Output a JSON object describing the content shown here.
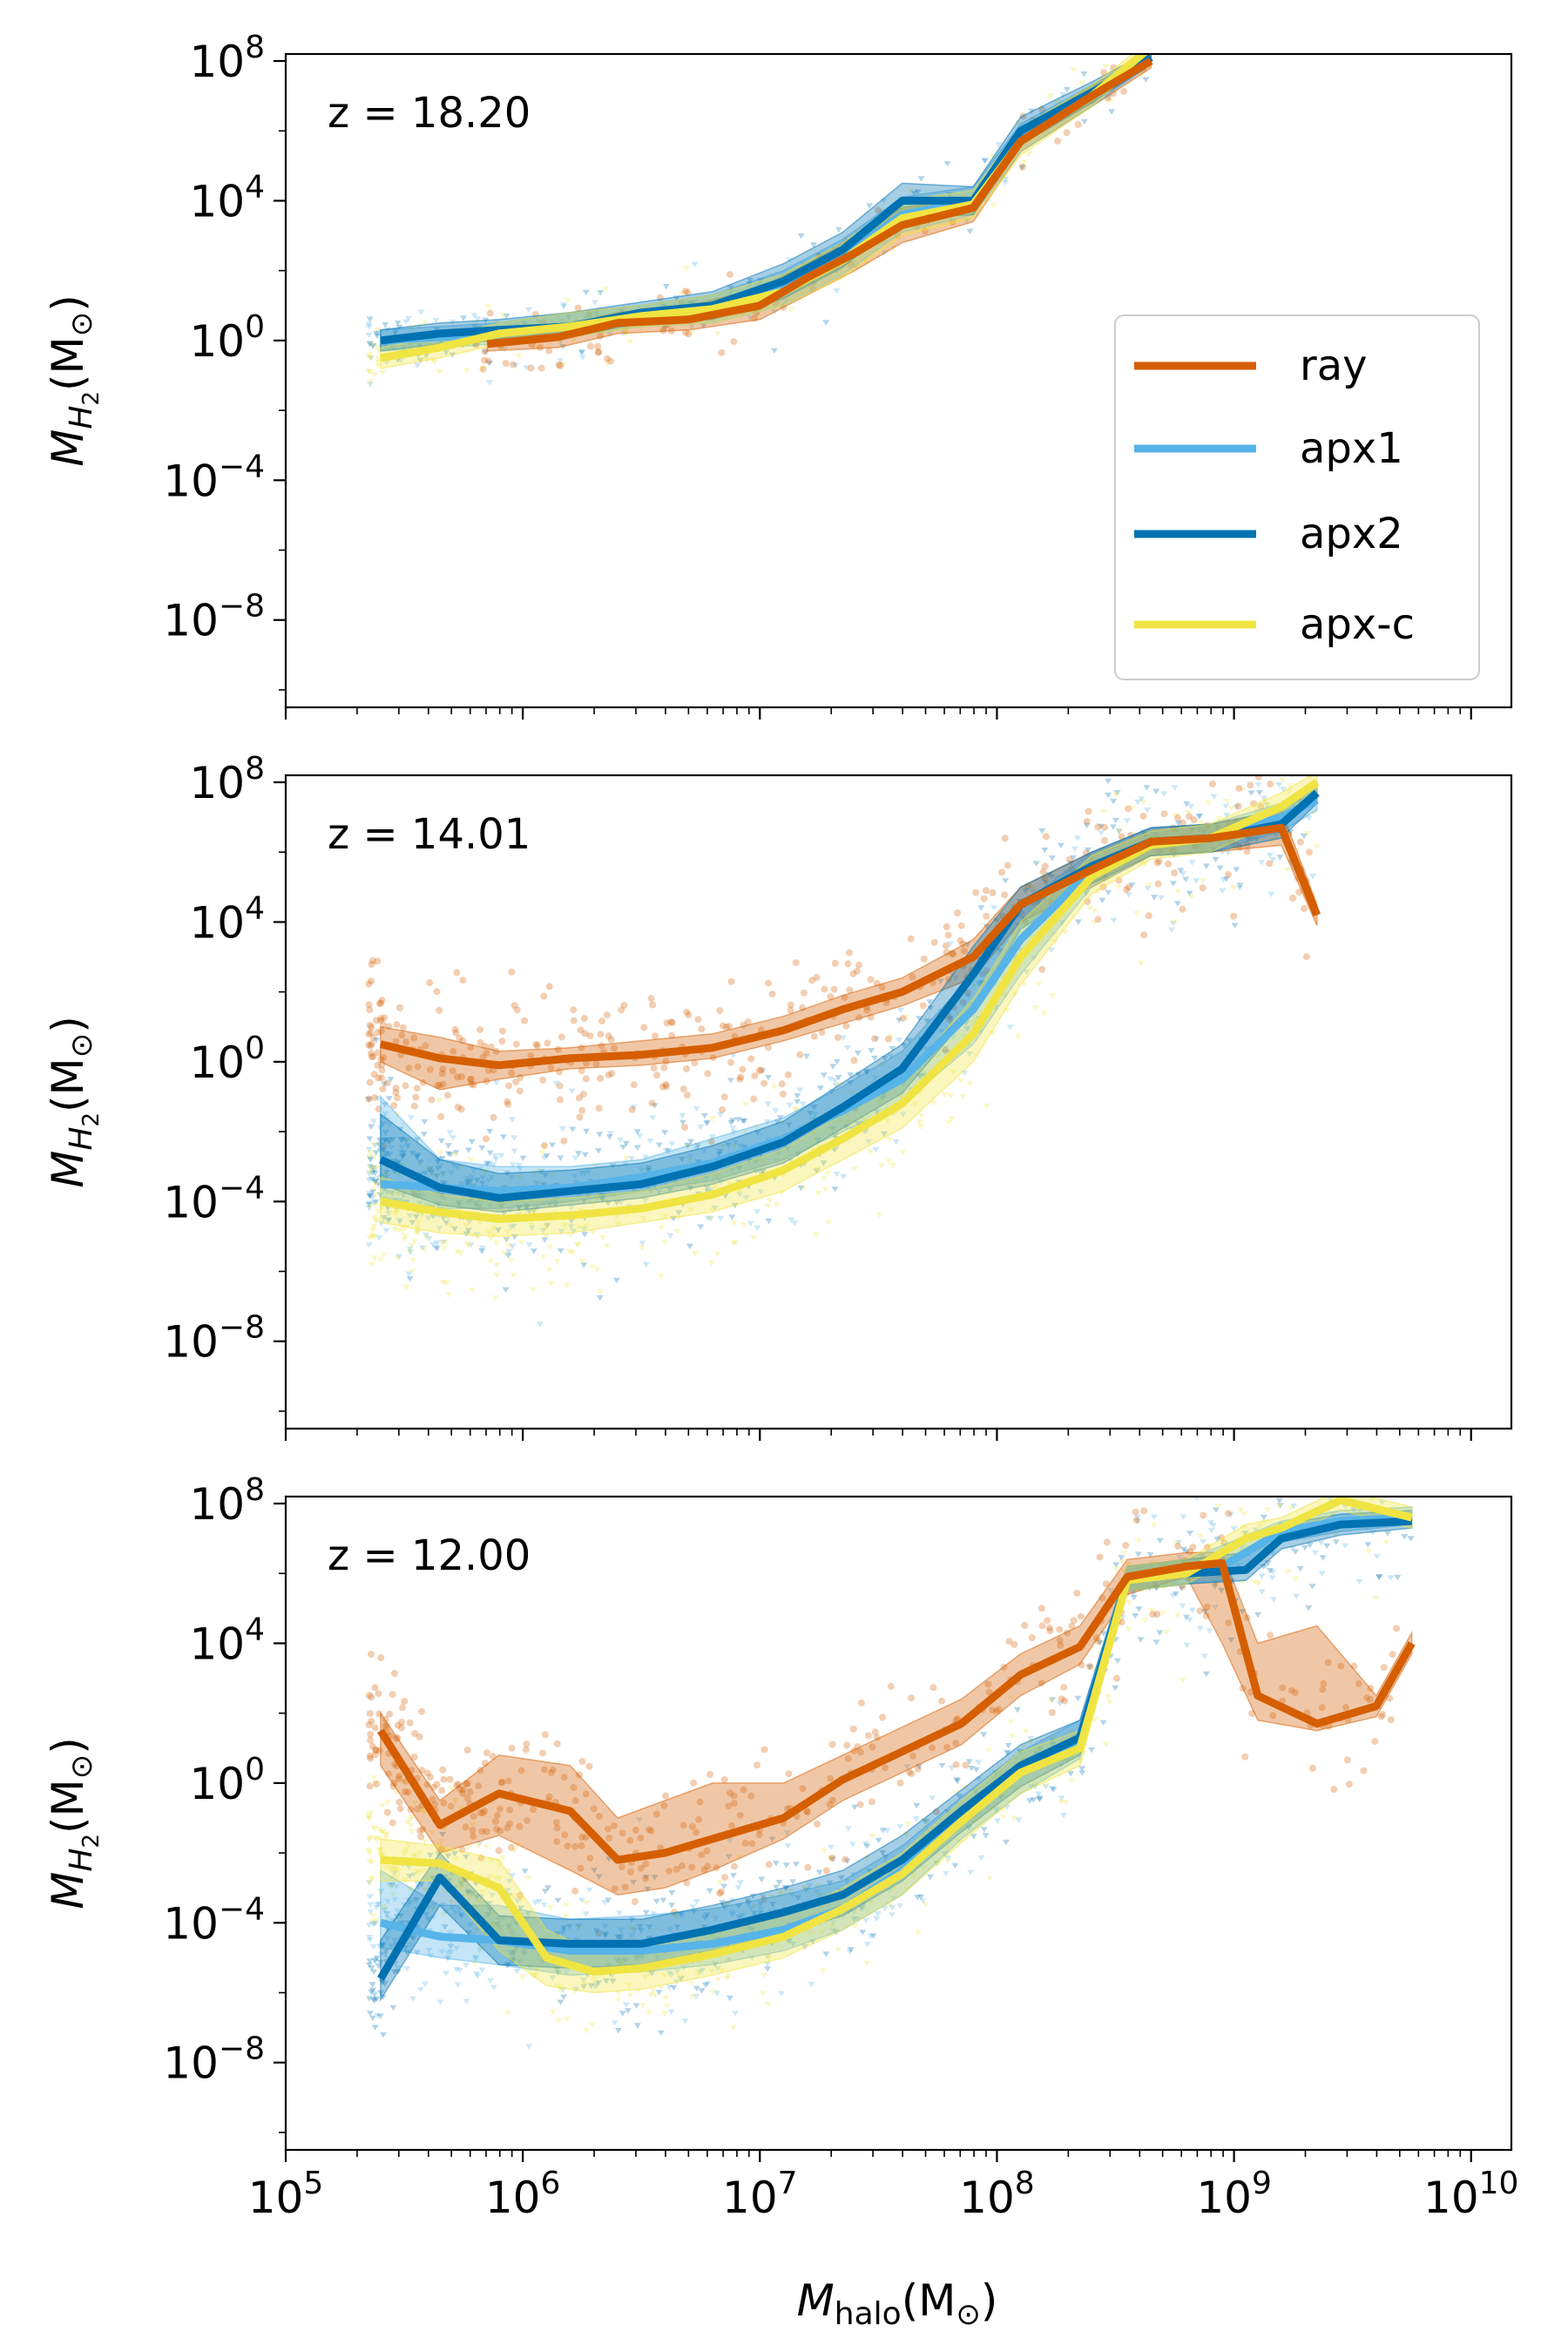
{
  "colors": {
    "ray": "#d55e00",
    "apx1": "#56b4e9",
    "apx2": "#0072b2",
    "apx-c": "#f0e442"
  },
  "legend_entries": [
    {
      "name": "ray",
      "label": "ray"
    },
    {
      "name": "apx1",
      "label": "apx1"
    },
    {
      "name": "apx2",
      "label": "apx2"
    },
    {
      "name": "apx-c",
      "label": "apx-c"
    }
  ],
  "axis_labels": {
    "ylabel_main": "M",
    "ylabel_sub": "H",
    "ylabel_subsub": "2",
    "ylabel_tail": "(M",
    "ylabel_sun": "⊙",
    "ylabel_close": ")",
    "xlabel_main": "M",
    "xlabel_sub": "halo",
    "xlabel_tail": "(M",
    "xlabel_sun": "⊙",
    "xlabel_close": ")"
  },
  "chart_data": [
    {
      "type": "line",
      "title": "z = 18.20",
      "xscale": "log",
      "yscale": "log",
      "xlim": [
        5,
        10.17
      ],
      "ylim": [
        -10.5,
        8.2
      ],
      "xticks": [
        {
          "exp": 5,
          "base": "10",
          "sup": "5"
        },
        {
          "exp": 6,
          "base": "10",
          "sup": "6"
        },
        {
          "exp": 7,
          "base": "10",
          "sup": "7"
        },
        {
          "exp": 8,
          "base": "10",
          "sup": "8"
        },
        {
          "exp": 9,
          "base": "10",
          "sup": "9"
        },
        {
          "exp": 10,
          "base": "10",
          "sup": "10"
        }
      ],
      "yticks": [
        {
          "exp": 8,
          "base": "10",
          "sup": "8"
        },
        {
          "exp": 4,
          "base": "10",
          "sup": "4"
        },
        {
          "exp": 0,
          "base": "10",
          "sup": "0"
        },
        {
          "exp": -4,
          "base": "10",
          "sup": "−4"
        },
        {
          "exp": -8,
          "base": "10",
          "sup": "−8"
        }
      ],
      "show_xticklabels": false,
      "legend": "right",
      "series": [
        {
          "name": "ray",
          "x": [
            5.85,
            6.15,
            6.4,
            6.7,
            7.0,
            7.2,
            7.4,
            7.6,
            7.9,
            8.1,
            8.4,
            8.65
          ],
          "y": [
            -0.1,
            0.1,
            0.5,
            0.6,
            1.0,
            1.8,
            2.5,
            3.3,
            3.8,
            5.7,
            7.0,
            8.0
          ],
          "lo": [
            -0.3,
            -0.2,
            0.2,
            0.3,
            0.6,
            1.3,
            2.0,
            2.8,
            3.4,
            5.4,
            6.7,
            7.8
          ],
          "hi": [
            0.2,
            0.4,
            0.8,
            1.0,
            1.5,
            2.2,
            3.0,
            3.8,
            4.1,
            6.0,
            7.3,
            8.2
          ]
        },
        {
          "name": "apx1",
          "x": [
            5.4,
            5.65,
            5.9,
            6.2,
            6.5,
            6.8,
            7.1,
            7.35,
            7.6,
            7.9,
            8.1,
            8.4,
            8.65
          ],
          "y": [
            0.0,
            0.1,
            0.2,
            0.4,
            0.7,
            0.9,
            1.5,
            2.4,
            3.6,
            4.0,
            5.8,
            7.0,
            8.1
          ],
          "lo": [
            -0.3,
            -0.2,
            -0.1,
            0.1,
            0.4,
            0.5,
            1.0,
            1.9,
            3.1,
            3.6,
            5.4,
            6.7,
            7.9
          ],
          "hi": [
            0.3,
            0.4,
            0.5,
            0.8,
            1.0,
            1.3,
            2.0,
            2.9,
            4.1,
            4.4,
            6.2,
            7.3,
            8.3
          ]
        },
        {
          "name": "apx2",
          "x": [
            5.4,
            5.65,
            5.9,
            6.2,
            6.5,
            6.8,
            7.1,
            7.35,
            7.6,
            7.9,
            8.1,
            8.4,
            8.65
          ],
          "y": [
            0.0,
            0.2,
            0.3,
            0.4,
            0.8,
            1.0,
            1.7,
            2.6,
            4.0,
            4.0,
            6.0,
            7.1,
            8.1
          ],
          "lo": [
            -0.3,
            -0.1,
            0.0,
            0.1,
            0.5,
            0.6,
            1.2,
            2.1,
            3.5,
            3.6,
            5.6,
            6.8,
            7.9
          ],
          "hi": [
            0.3,
            0.5,
            0.6,
            0.8,
            1.1,
            1.4,
            2.2,
            3.1,
            4.5,
            4.4,
            6.4,
            7.4,
            8.3
          ]
        },
        {
          "name": "apx-c",
          "x": [
            5.4,
            5.65,
            5.9,
            6.2,
            6.5,
            6.8,
            7.1,
            7.35,
            7.6,
            7.9,
            8.1,
            8.4,
            8.65
          ],
          "y": [
            -0.5,
            -0.2,
            0.2,
            0.4,
            0.7,
            0.9,
            1.4,
            2.3,
            3.5,
            3.9,
            5.7,
            7.0,
            8.4
          ],
          "lo": [
            -0.8,
            -0.5,
            -0.1,
            0.1,
            0.4,
            0.5,
            1.0,
            1.8,
            3.0,
            3.5,
            5.3,
            6.7,
            8.2
          ],
          "hi": [
            -0.2,
            0.1,
            0.5,
            0.8,
            1.0,
            1.3,
            1.9,
            2.8,
            4.0,
            4.3,
            6.1,
            7.3,
            8.6
          ]
        }
      ]
    },
    {
      "type": "line",
      "title": "z = 14.01",
      "xscale": "log",
      "yscale": "log",
      "xlim": [
        5,
        10.17
      ],
      "ylim": [
        -10.5,
        8.2
      ],
      "xticks": [
        {
          "exp": 5,
          "base": "10",
          "sup": "5"
        },
        {
          "exp": 6,
          "base": "10",
          "sup": "6"
        },
        {
          "exp": 7,
          "base": "10",
          "sup": "7"
        },
        {
          "exp": 8,
          "base": "10",
          "sup": "8"
        },
        {
          "exp": 9,
          "base": "10",
          "sup": "9"
        },
        {
          "exp": 10,
          "base": "10",
          "sup": "10"
        }
      ],
      "yticks": [
        {
          "exp": 8,
          "base": "10",
          "sup": "8"
        },
        {
          "exp": 4,
          "base": "10",
          "sup": "4"
        },
        {
          "exp": 0,
          "base": "10",
          "sup": "0"
        },
        {
          "exp": -4,
          "base": "10",
          "sup": "−4"
        },
        {
          "exp": -8,
          "base": "10",
          "sup": "−8"
        }
      ],
      "show_xticklabels": false,
      "series": [
        {
          "name": "ray",
          "x": [
            5.4,
            5.65,
            5.9,
            6.2,
            6.5,
            6.8,
            7.1,
            7.35,
            7.6,
            7.9,
            8.1,
            8.4,
            8.65,
            8.9,
            9.2,
            9.35
          ],
          "y": [
            0.5,
            0.1,
            -0.1,
            0.1,
            0.2,
            0.4,
            0.9,
            1.5,
            2.0,
            3.0,
            4.5,
            5.5,
            6.3,
            6.4,
            6.7,
            4.2
          ],
          "lo": [
            0.0,
            -0.8,
            -0.5,
            -0.2,
            -0.1,
            0.1,
            0.6,
            1.1,
            1.6,
            2.4,
            4.0,
            5.0,
            5.9,
            6.0,
            6.2,
            3.9
          ],
          "hi": [
            1.0,
            0.7,
            0.3,
            0.4,
            0.6,
            0.8,
            1.3,
            1.9,
            2.4,
            3.5,
            5.0,
            6.0,
            6.7,
            6.8,
            7.2,
            4.5
          ]
        },
        {
          "name": "apx1",
          "x": [
            5.4,
            5.65,
            5.9,
            6.2,
            6.5,
            6.8,
            7.1,
            7.35,
            7.6,
            7.9,
            8.1,
            8.4,
            8.65,
            8.9,
            9.2,
            9.35
          ],
          "y": [
            -3.5,
            -3.6,
            -3.7,
            -3.6,
            -3.3,
            -2.9,
            -2.2,
            -1.4,
            -0.5,
            1.5,
            3.5,
            5.5,
            6.3,
            6.4,
            7.0,
            7.5
          ],
          "lo": [
            -4.0,
            -4.2,
            -4.2,
            -4.0,
            -3.7,
            -3.4,
            -2.8,
            -2.0,
            -1.2,
            0.5,
            2.5,
            5.0,
            5.9,
            6.0,
            6.6,
            7.2
          ],
          "hi": [
            -1.0,
            -2.8,
            -3.0,
            -3.0,
            -2.8,
            -2.2,
            -1.6,
            -0.7,
            0.3,
            2.5,
            4.5,
            6.0,
            6.7,
            6.8,
            7.4,
            7.8
          ]
        },
        {
          "name": "apx2",
          "x": [
            5.4,
            5.65,
            5.9,
            6.2,
            6.5,
            6.8,
            7.1,
            7.35,
            7.6,
            7.9,
            8.1,
            8.4,
            8.65,
            8.9,
            9.2,
            9.35
          ],
          "y": [
            -2.8,
            -3.6,
            -3.9,
            -3.7,
            -3.5,
            -3.0,
            -2.3,
            -1.3,
            -0.2,
            2.5,
            4.5,
            5.6,
            6.3,
            6.4,
            6.8,
            7.7
          ],
          "lo": [
            -3.5,
            -4.1,
            -4.3,
            -4.1,
            -3.9,
            -3.5,
            -2.9,
            -1.9,
            -0.9,
            1.5,
            3.8,
            5.1,
            5.9,
            6.0,
            6.4,
            7.4
          ],
          "hi": [
            -1.5,
            -2.8,
            -3.2,
            -3.1,
            -2.9,
            -2.4,
            -1.7,
            -0.6,
            0.5,
            3.3,
            5.0,
            6.0,
            6.7,
            6.8,
            7.2,
            8.0
          ]
        },
        {
          "name": "apx-c",
          "x": [
            5.4,
            5.65,
            5.9,
            6.2,
            6.5,
            6.8,
            7.1,
            7.35,
            7.6,
            7.9,
            8.1,
            8.4,
            8.65,
            8.9,
            9.2,
            9.35
          ],
          "y": [
            -4.0,
            -4.3,
            -4.5,
            -4.4,
            -4.2,
            -3.8,
            -3.1,
            -2.2,
            -1.2,
            0.8,
            3.0,
            5.3,
            6.2,
            6.4,
            7.3,
            8.0
          ],
          "lo": [
            -4.6,
            -4.9,
            -5.0,
            -4.9,
            -4.6,
            -4.3,
            -3.7,
            -2.8,
            -1.9,
            0.0,
            2.2,
            4.8,
            5.8,
            6.0,
            6.9,
            7.7
          ],
          "hi": [
            -3.3,
            -3.8,
            -4.0,
            -3.9,
            -3.7,
            -3.2,
            -2.5,
            -1.5,
            -0.5,
            1.8,
            4.0,
            5.9,
            6.6,
            6.8,
            7.7,
            8.3
          ]
        }
      ]
    },
    {
      "type": "line",
      "title": "z = 12.00",
      "xscale": "log",
      "yscale": "log",
      "xlim": [
        5,
        10.17
      ],
      "ylim": [
        -10.5,
        8.2
      ],
      "xticks": [
        {
          "exp": 5,
          "base": "10",
          "sup": "5"
        },
        {
          "exp": 6,
          "base": "10",
          "sup": "6"
        },
        {
          "exp": 7,
          "base": "10",
          "sup": "7"
        },
        {
          "exp": 8,
          "base": "10",
          "sup": "8"
        },
        {
          "exp": 9,
          "base": "10",
          "sup": "9"
        },
        {
          "exp": 10,
          "base": "10",
          "sup": "10"
        }
      ],
      "yticks": [
        {
          "exp": 8,
          "base": "10",
          "sup": "8"
        },
        {
          "exp": 4,
          "base": "10",
          "sup": "4"
        },
        {
          "exp": 0,
          "base": "10",
          "sup": "0"
        },
        {
          "exp": -4,
          "base": "10",
          "sup": "−4"
        },
        {
          "exp": -8,
          "base": "10",
          "sup": "−8"
        }
      ],
      "show_xticklabels": true,
      "series": [
        {
          "name": "ray",
          "x": [
            5.4,
            5.65,
            5.9,
            6.2,
            6.4,
            6.6,
            6.8,
            7.1,
            7.35,
            7.6,
            7.85,
            8.1,
            8.35,
            8.55,
            8.8,
            8.95,
            9.1,
            9.35,
            9.6,
            9.75
          ],
          "y": [
            1.5,
            -1.2,
            -0.3,
            -0.8,
            -2.2,
            -2.0,
            -1.6,
            -1.0,
            0.1,
            0.9,
            1.7,
            3.1,
            3.9,
            5.9,
            6.2,
            6.3,
            2.5,
            1.7,
            2.2,
            4.0
          ],
          "lo": [
            0.5,
            -2.0,
            -1.5,
            -2.5,
            -3.2,
            -3.0,
            -2.5,
            -1.6,
            -0.5,
            0.3,
            1.1,
            2.5,
            3.4,
            5.4,
            5.9,
            4.0,
            1.8,
            1.5,
            1.9,
            3.7
          ],
          "hi": [
            2.0,
            -0.5,
            0.8,
            0.5,
            -1.0,
            -0.5,
            0.0,
            0.0,
            0.8,
            1.6,
            2.4,
            3.7,
            4.5,
            6.4,
            6.6,
            6.6,
            4.0,
            4.5,
            2.5,
            4.3
          ]
        },
        {
          "name": "apx1",
          "x": [
            5.4,
            5.65,
            5.9,
            6.2,
            6.5,
            6.8,
            7.1,
            7.35,
            7.6,
            7.85,
            8.1,
            8.35,
            8.55,
            8.8,
            8.95,
            9.2,
            9.45,
            9.75
          ],
          "y": [
            -4.0,
            -4.4,
            -4.5,
            -4.8,
            -4.8,
            -4.6,
            -4.2,
            -3.6,
            -2.5,
            -1.0,
            0.3,
            1.2,
            5.8,
            6.0,
            6.2,
            7.2,
            7.5,
            7.6
          ],
          "lo": [
            -4.7,
            -5.0,
            -5.2,
            -5.5,
            -5.4,
            -5.2,
            -4.8,
            -4.2,
            -3.2,
            -1.6,
            -0.3,
            0.7,
            5.5,
            5.7,
            5.8,
            6.9,
            7.2,
            7.4
          ],
          "hi": [
            -2.5,
            -3.5,
            -3.5,
            -3.9,
            -3.8,
            -3.6,
            -3.2,
            -2.8,
            -1.8,
            -0.4,
            0.9,
            1.8,
            6.2,
            6.4,
            6.8,
            7.5,
            7.8,
            7.9
          ]
        },
        {
          "name": "apx2",
          "x": [
            5.4,
            5.65,
            5.9,
            6.2,
            6.5,
            6.8,
            7.1,
            7.35,
            7.6,
            7.85,
            8.1,
            8.35,
            8.55,
            8.8,
            9.05,
            9.2,
            9.45,
            9.75
          ],
          "y": [
            -5.6,
            -2.7,
            -4.5,
            -4.6,
            -4.6,
            -4.2,
            -3.7,
            -3.2,
            -2.2,
            -0.8,
            0.5,
            1.3,
            5.8,
            6.0,
            6.1,
            7.0,
            7.4,
            7.5
          ],
          "lo": [
            -6.2,
            -3.5,
            -5.2,
            -5.3,
            -5.2,
            -4.8,
            -4.3,
            -3.8,
            -2.8,
            -1.4,
            -0.1,
            0.8,
            5.5,
            5.7,
            5.8,
            6.7,
            7.1,
            7.3
          ],
          "hi": [
            -4.5,
            -2.0,
            -3.8,
            -3.9,
            -3.9,
            -3.5,
            -3.0,
            -2.5,
            -1.5,
            -0.2,
            1.1,
            1.8,
            6.2,
            6.4,
            6.6,
            7.4,
            7.7,
            7.8
          ]
        },
        {
          "name": "apx-c",
          "x": [
            5.4,
            5.65,
            5.9,
            6.1,
            6.3,
            6.5,
            6.8,
            7.1,
            7.35,
            7.6,
            7.85,
            8.1,
            8.35,
            8.55,
            8.8,
            9.05,
            9.2,
            9.45,
            9.75
          ],
          "y": [
            -2.2,
            -2.3,
            -3.0,
            -5.0,
            -5.4,
            -5.3,
            -4.9,
            -4.4,
            -3.6,
            -2.6,
            -1.1,
            0.3,
            1.0,
            5.8,
            6.0,
            7.0,
            7.3,
            8.1,
            7.6
          ],
          "lo": [
            -2.8,
            -2.8,
            -4.8,
            -5.8,
            -6.0,
            -5.9,
            -5.5,
            -5.0,
            -4.2,
            -3.2,
            -1.7,
            -0.3,
            0.5,
            5.5,
            5.7,
            6.6,
            7.0,
            7.8,
            7.3
          ],
          "hi": [
            -1.6,
            -1.8,
            -2.2,
            -4.2,
            -4.8,
            -4.7,
            -4.3,
            -3.8,
            -3.0,
            -2.0,
            -0.5,
            0.9,
            1.5,
            6.2,
            6.4,
            7.4,
            7.6,
            8.4,
            7.9
          ]
        }
      ]
    }
  ]
}
